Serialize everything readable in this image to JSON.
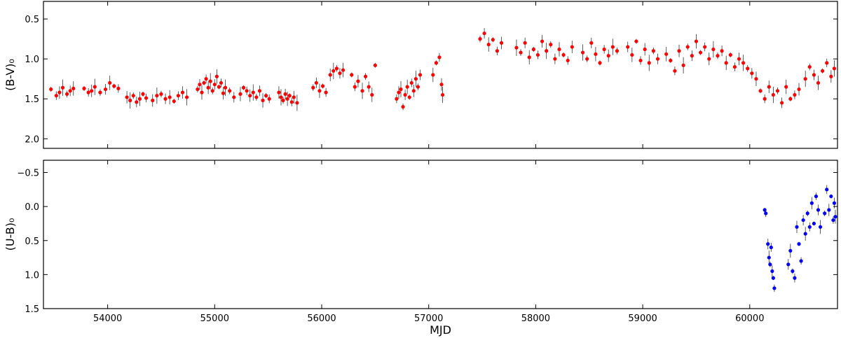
{
  "chart_data": [
    {
      "type": "scatter",
      "ylabel": "(B-V)₀",
      "xlabel": "",
      "xlim": [
        53400,
        60820
      ],
      "ylim": [
        0.28,
        2.12
      ],
      "y_inverted": true,
      "xticks": [
        54000,
        55000,
        56000,
        57000,
        58000,
        59000,
        60000
      ],
      "yticks": [
        0.5,
        1.0,
        1.5,
        2.0
      ],
      "ytick_labels": [
        "0.5",
        "1.0",
        "1.5",
        "2.0"
      ],
      "error_bars": true,
      "grid": false,
      "legend": "none",
      "series": [
        {
          "color": "#ff0000",
          "points": [
            [
              53470,
              1.38
            ],
            [
              53520,
              1.46
            ],
            [
              53550,
              1.42
            ],
            [
              53580,
              1.36
            ],
            [
              53620,
              1.44
            ],
            [
              53650,
              1.4
            ],
            [
              53680,
              1.37
            ],
            [
              53780,
              1.37
            ],
            [
              53820,
              1.42
            ],
            [
              53850,
              1.4
            ],
            [
              53880,
              1.35
            ],
            [
              53930,
              1.42
            ],
            [
              53980,
              1.38
            ],
            [
              54020,
              1.3
            ],
            [
              54060,
              1.34
            ],
            [
              54100,
              1.37
            ],
            [
              54180,
              1.48
            ],
            [
              54210,
              1.52
            ],
            [
              54240,
              1.46
            ],
            [
              54270,
              1.54
            ],
            [
              54300,
              1.5
            ],
            [
              54330,
              1.44
            ],
            [
              54360,
              1.49
            ],
            [
              54420,
              1.52
            ],
            [
              54460,
              1.46
            ],
            [
              54500,
              1.44
            ],
            [
              54540,
              1.5
            ],
            [
              54580,
              1.48
            ],
            [
              54620,
              1.53
            ],
            [
              54660,
              1.46
            ],
            [
              54700,
              1.42
            ],
            [
              54740,
              1.48
            ],
            [
              54840,
              1.38
            ],
            [
              54860,
              1.32
            ],
            [
              54880,
              1.42
            ],
            [
              54900,
              1.3
            ],
            [
              54920,
              1.25
            ],
            [
              54940,
              1.36
            ],
            [
              54960,
              1.28
            ],
            [
              54980,
              1.4
            ],
            [
              55000,
              1.32
            ],
            [
              55020,
              1.22
            ],
            [
              55040,
              1.35
            ],
            [
              55060,
              1.3
            ],
            [
              55080,
              1.43
            ],
            [
              55100,
              1.36
            ],
            [
              55140,
              1.4
            ],
            [
              55180,
              1.48
            ],
            [
              55240,
              1.44
            ],
            [
              55270,
              1.36
            ],
            [
              55300,
              1.4
            ],
            [
              55330,
              1.46
            ],
            [
              55360,
              1.42
            ],
            [
              55390,
              1.48
            ],
            [
              55420,
              1.4
            ],
            [
              55450,
              1.52
            ],
            [
              55480,
              1.46
            ],
            [
              55510,
              1.5
            ],
            [
              55600,
              1.42
            ],
            [
              55620,
              1.48
            ],
            [
              55640,
              1.52
            ],
            [
              55660,
              1.44
            ],
            [
              55680,
              1.5
            ],
            [
              55700,
              1.46
            ],
            [
              55720,
              1.54
            ],
            [
              55740,
              1.48
            ],
            [
              55770,
              1.55
            ],
            [
              55920,
              1.36
            ],
            [
              55950,
              1.3
            ],
            [
              55980,
              1.4
            ],
            [
              56010,
              1.34
            ],
            [
              56040,
              1.42
            ],
            [
              56080,
              1.2
            ],
            [
              56110,
              1.15
            ],
            [
              56140,
              1.12
            ],
            [
              56170,
              1.18
            ],
            [
              56200,
              1.14
            ],
            [
              56280,
              1.2
            ],
            [
              56310,
              1.35
            ],
            [
              56340,
              1.28
            ],
            [
              56380,
              1.4
            ],
            [
              56410,
              1.22
            ],
            [
              56440,
              1.35
            ],
            [
              56470,
              1.45
            ],
            [
              56500,
              1.08
            ],
            [
              56700,
              1.5
            ],
            [
              56720,
              1.42
            ],
            [
              56740,
              1.38
            ],
            [
              56760,
              1.6
            ],
            [
              56780,
              1.45
            ],
            [
              56800,
              1.35
            ],
            [
              56820,
              1.48
            ],
            [
              56840,
              1.3
            ],
            [
              56860,
              1.4
            ],
            [
              56880,
              1.25
            ],
            [
              56900,
              1.35
            ],
            [
              56920,
              1.2
            ],
            [
              57040,
              1.2
            ],
            [
              57070,
              1.05
            ],
            [
              57100,
              0.98
            ],
            [
              57120,
              1.32
            ],
            [
              57130,
              1.45
            ],
            [
              57480,
              0.75
            ],
            [
              57520,
              0.68
            ],
            [
              57560,
              0.82
            ],
            [
              57600,
              0.76
            ],
            [
              57640,
              0.9
            ],
            [
              57680,
              0.8
            ],
            [
              57820,
              0.86
            ],
            [
              57860,
              0.92
            ],
            [
              57900,
              0.8
            ],
            [
              57940,
              0.98
            ],
            [
              57980,
              0.88
            ],
            [
              58020,
              0.95
            ],
            [
              58060,
              0.78
            ],
            [
              58100,
              0.9
            ],
            [
              58140,
              0.82
            ],
            [
              58180,
              1.0
            ],
            [
              58220,
              0.88
            ],
            [
              58260,
              0.95
            ],
            [
              58300,
              1.02
            ],
            [
              58340,
              0.85
            ],
            [
              58440,
              0.92
            ],
            [
              58480,
              1.0
            ],
            [
              58520,
              0.8
            ],
            [
              58560,
              0.94
            ],
            [
              58600,
              1.05
            ],
            [
              58640,
              0.88
            ],
            [
              58680,
              0.96
            ],
            [
              58720,
              0.85
            ],
            [
              58760,
              0.9
            ],
            [
              58860,
              0.85
            ],
            [
              58900,
              0.95
            ],
            [
              58940,
              0.78
            ],
            [
              58980,
              1.02
            ],
            [
              59020,
              0.88
            ],
            [
              59060,
              1.05
            ],
            [
              59100,
              0.9
            ],
            [
              59140,
              1.0
            ],
            [
              59220,
              0.94
            ],
            [
              59260,
              1.02
            ],
            [
              59300,
              1.15
            ],
            [
              59340,
              0.9
            ],
            [
              59380,
              1.08
            ],
            [
              59420,
              0.85
            ],
            [
              59460,
              0.96
            ],
            [
              59500,
              0.78
            ],
            [
              59540,
              0.92
            ],
            [
              59580,
              0.85
            ],
            [
              59620,
              1.0
            ],
            [
              59660,
              0.88
            ],
            [
              59700,
              0.96
            ],
            [
              59740,
              0.9
            ],
            [
              59780,
              1.05
            ],
            [
              59820,
              0.95
            ],
            [
              59860,
              1.1
            ],
            [
              59900,
              1.0
            ],
            [
              59940,
              1.05
            ],
            [
              59980,
              1.12
            ],
            [
              60020,
              1.18
            ],
            [
              60060,
              1.25
            ],
            [
              60100,
              1.4
            ],
            [
              60140,
              1.5
            ],
            [
              60180,
              1.35
            ],
            [
              60220,
              1.45
            ],
            [
              60260,
              1.4
            ],
            [
              60300,
              1.55
            ],
            [
              60340,
              1.35
            ],
            [
              60380,
              1.5
            ],
            [
              60420,
              1.45
            ],
            [
              60460,
              1.38
            ],
            [
              60520,
              1.25
            ],
            [
              60560,
              1.1
            ],
            [
              60600,
              1.2
            ],
            [
              60640,
              1.3
            ],
            [
              60680,
              1.15
            ],
            [
              60720,
              1.05
            ],
            [
              60760,
              1.22
            ],
            [
              60790,
              1.12
            ]
          ]
        }
      ]
    },
    {
      "type": "scatter",
      "ylabel": "(U-B)₀",
      "xlabel": "MJD",
      "xlim": [
        53400,
        60820
      ],
      "ylim": [
        -0.68,
        1.5
      ],
      "y_inverted": true,
      "xticks": [
        54000,
        55000,
        56000,
        57000,
        58000,
        59000,
        60000
      ],
      "xtick_labels": [
        "54000",
        "55000",
        "56000",
        "57000",
        "58000",
        "59000",
        "60000"
      ],
      "yticks": [
        -0.5,
        0.0,
        0.5,
        1.0,
        1.5
      ],
      "ytick_labels": [
        "−0.5",
        "0.0",
        "0.5",
        "1.0",
        "1.5"
      ],
      "error_bars": true,
      "grid": false,
      "legend": "none",
      "series": [
        {
          "color": "#0000ff",
          "points": [
            [
              60140,
              0.05
            ],
            [
              60150,
              0.1
            ],
            [
              60170,
              0.55
            ],
            [
              60180,
              0.75
            ],
            [
              60190,
              0.85
            ],
            [
              60200,
              0.6
            ],
            [
              60210,
              0.95
            ],
            [
              60220,
              1.05
            ],
            [
              60230,
              1.2
            ],
            [
              60360,
              0.85
            ],
            [
              60380,
              0.65
            ],
            [
              60400,
              0.95
            ],
            [
              60420,
              1.05
            ],
            [
              60440,
              0.3
            ],
            [
              60460,
              0.55
            ],
            [
              60480,
              0.8
            ],
            [
              60500,
              0.2
            ],
            [
              60520,
              0.4
            ],
            [
              60540,
              0.1
            ],
            [
              60560,
              0.3
            ],
            [
              60580,
              -0.05
            ],
            [
              60600,
              0.25
            ],
            [
              60620,
              -0.15
            ],
            [
              60640,
              0.05
            ],
            [
              60660,
              0.3
            ],
            [
              60700,
              0.1
            ],
            [
              60720,
              -0.25
            ],
            [
              60740,
              0.05
            ],
            [
              60760,
              -0.15
            ],
            [
              60780,
              0.2
            ],
            [
              60790,
              -0.05
            ],
            [
              60800,
              0.15
            ]
          ]
        }
      ]
    }
  ]
}
